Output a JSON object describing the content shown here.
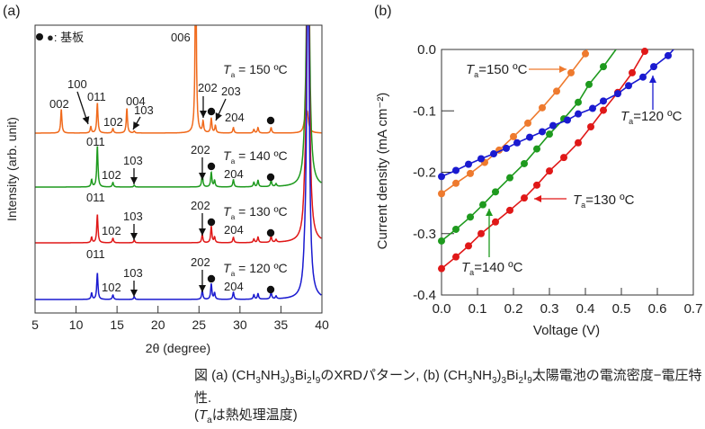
{
  "chart_data": [
    {
      "type": "line",
      "panel_label": "(a)",
      "xlabel": "2θ (degree)",
      "ylabel": "Intensity (arb. unit)",
      "xlim": [
        5,
        40
      ],
      "xticks": [
        "5",
        "10",
        "15",
        "20",
        "25",
        "30",
        "35",
        "40"
      ],
      "legend_note": "●: 基板",
      "series": [
        {
          "name": "Ta = 150 ºC",
          "temp_label": "= 150 ºC",
          "color": "#f06a1c",
          "peaks": [
            [
              8.2,
              26
            ],
            [
              11.8,
              7
            ],
            [
              12.6,
              33
            ],
            [
              14.5,
              5
            ],
            [
              16.2,
              27
            ],
            [
              17.1,
              2
            ],
            [
              24.6,
              200
            ],
            [
              25.5,
              12
            ],
            [
              26.5,
              16
            ],
            [
              27.0,
              8
            ],
            [
              29.2,
              6
            ],
            [
              31.7,
              4
            ],
            [
              32.2,
              6
            ],
            [
              33.8,
              6
            ],
            [
              37.9,
              10
            ],
            [
              38.2,
              22
            ]
          ],
          "labels": [
            "002",
            "100",
            "011",
            "004",
            "103",
            "102",
            "006",
            "202",
            "203",
            "204"
          ]
        },
        {
          "name": "Ta = 140 ºC",
          "temp_label": "= 140 ºC",
          "color": "#1e9a1e",
          "peaks": [
            [
              11.9,
              8
            ],
            [
              12.6,
              45
            ],
            [
              14.5,
              5
            ],
            [
              17.1,
              2
            ],
            [
              25.4,
              14
            ],
            [
              26.5,
              16
            ],
            [
              26.9,
              7
            ],
            [
              29.2,
              8
            ],
            [
              31.7,
              5
            ],
            [
              32.2,
              7
            ],
            [
              33.8,
              7
            ],
            [
              34.4,
              3
            ],
            [
              37.9,
              18
            ],
            [
              38.3,
              400
            ]
          ],
          "labels": [
            "011",
            "102",
            "103",
            "202",
            "204"
          ]
        },
        {
          "name": "Ta = 130 ºC",
          "temp_label": "= 130 ºC",
          "color": "#e01818",
          "peaks": [
            [
              11.9,
              6
            ],
            [
              12.6,
              31
            ],
            [
              14.5,
              5
            ],
            [
              17.1,
              3
            ],
            [
              25.4,
              9
            ],
            [
              26.5,
              18
            ],
            [
              26.9,
              6
            ],
            [
              29.2,
              6
            ],
            [
              31.7,
              4
            ],
            [
              32.2,
              6
            ],
            [
              33.8,
              7
            ],
            [
              34.4,
              3
            ],
            [
              37.9,
              20
            ],
            [
              38.3,
              400
            ]
          ],
          "labels": [
            "011",
            "102",
            "103",
            "202",
            "204"
          ]
        },
        {
          "name": "Ta = 120 ºC",
          "temp_label": "= 120 ºC",
          "color": "#1a1ad0",
          "peaks": [
            [
              11.9,
              7
            ],
            [
              12.6,
              29
            ],
            [
              14.5,
              5
            ],
            [
              17.1,
              3
            ],
            [
              25.4,
              10
            ],
            [
              26.5,
              17
            ],
            [
              26.9,
              7
            ],
            [
              29.2,
              8
            ],
            [
              31.7,
              5
            ],
            [
              32.2,
              6
            ],
            [
              33.8,
              8
            ],
            [
              34.4,
              3
            ],
            [
              37.9,
              18
            ],
            [
              38.3,
              400
            ]
          ],
          "labels": [
            "011",
            "102",
            "103",
            "202",
            "204"
          ]
        }
      ]
    },
    {
      "type": "line",
      "panel_label": "(b)",
      "xlabel": "Voltage (V)",
      "ylabel": "Current density (mA cm⁻²)",
      "xlim": [
        0,
        0.7
      ],
      "ylim": [
        -0.4,
        0
      ],
      "xticks": [
        "0.0",
        "0.1",
        "0.2",
        "0.3",
        "0.4",
        "0.5",
        "0.6",
        "0.7"
      ],
      "yticks": [
        "0.0",
        "-0.1",
        "-0.2",
        "-0.3",
        "-0.4"
      ],
      "series": [
        {
          "name": "Ta=150 ºC",
          "label": "=150 ºC",
          "color": "#ee7a2e",
          "x": [
            0,
            0.04,
            0.08,
            0.12,
            0.16,
            0.2,
            0.24,
            0.28,
            0.32,
            0.36,
            0.4
          ],
          "y": [
            -0.235,
            -0.218,
            -0.202,
            -0.184,
            -0.164,
            -0.142,
            -0.12,
            -0.095,
            -0.068,
            -0.038,
            -0.007
          ],
          "voc": 0.405
        },
        {
          "name": "Ta=140 ºC",
          "label": "=140 ºC",
          "color": "#1e9a1e",
          "x": [
            0,
            0.04,
            0.08,
            0.115,
            0.15,
            0.19,
            0.23,
            0.265,
            0.3,
            0.34,
            0.38,
            0.41,
            0.45
          ],
          "y": [
            -0.312,
            -0.293,
            -0.273,
            -0.253,
            -0.232,
            -0.209,
            -0.186,
            -0.162,
            -0.138,
            -0.113,
            -0.086,
            -0.057,
            -0.028
          ],
          "voc": 0.485
        },
        {
          "name": "Ta=130 ºC",
          "label": "=130 ºC",
          "color": "#e01818",
          "x": [
            0,
            0.04,
            0.075,
            0.11,
            0.15,
            0.19,
            0.23,
            0.265,
            0.3,
            0.34,
            0.38,
            0.415,
            0.45,
            0.49,
            0.53,
            0.565
          ],
          "y": [
            -0.357,
            -0.338,
            -0.32,
            -0.3,
            -0.281,
            -0.262,
            -0.242,
            -0.221,
            -0.198,
            -0.176,
            -0.152,
            -0.126,
            -0.099,
            -0.07,
            -0.038,
            -0.003
          ],
          "voc": 0.567
        },
        {
          "name": "Ta=120 ºC",
          "label": "=120 ºC",
          "color": "#1a1ad0",
          "x": [
            0,
            0.04,
            0.075,
            0.11,
            0.145,
            0.18,
            0.21,
            0.245,
            0.28,
            0.31,
            0.35,
            0.38,
            0.42,
            0.45,
            0.49,
            0.52,
            0.56,
            0.59,
            0.63
          ],
          "y": [
            -0.207,
            -0.197,
            -0.187,
            -0.178,
            -0.17,
            -0.161,
            -0.152,
            -0.143,
            -0.134,
            -0.124,
            -0.115,
            -0.105,
            -0.096,
            -0.084,
            -0.072,
            -0.059,
            -0.045,
            -0.028,
            -0.01
          ],
          "voc": 0.645
        }
      ]
    }
  ],
  "caption": {
    "line1": "図 (a) (CH3NH3)3Bi2I9のXRDパターン, (b) (CH3NH3)3Bi2I9太陽電池の電流密度−電圧特性.",
    "line2_open": "(",
    "line2_T": "T",
    "line2_sub": "a",
    "line2_rest": "は熱処理温度)"
  }
}
